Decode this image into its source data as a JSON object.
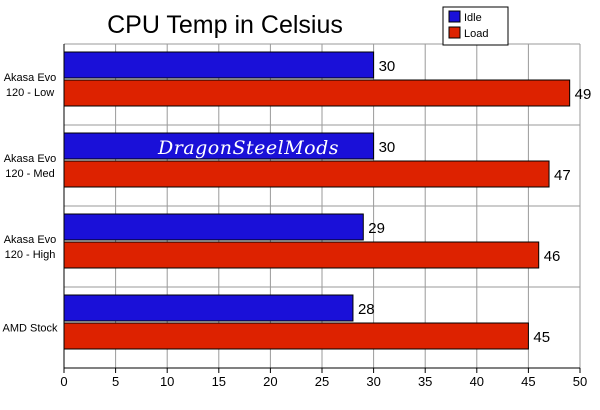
{
  "chart_data": {
    "type": "bar",
    "orientation": "horizontal",
    "title": "CPU Temp in Celsius",
    "categories": [
      "Akasa Evo\n120 - Low",
      "Akasa Evo\n120 - Med",
      "Akasa Evo\n120 - High",
      "AMD Stock"
    ],
    "series": [
      {
        "name": "Idle",
        "color": "#1a10d8",
        "values": [
          30,
          30,
          29,
          28
        ]
      },
      {
        "name": "Load",
        "color": "#dd2200",
        "values": [
          49,
          47,
          46,
          45
        ]
      }
    ],
    "xlim": [
      0,
      50
    ],
    "xticks": [
      0,
      5,
      10,
      15,
      20,
      25,
      30,
      35,
      40,
      45,
      50
    ],
    "grid": true,
    "legend": "top-right",
    "watermark": "DragonSteelMods"
  }
}
